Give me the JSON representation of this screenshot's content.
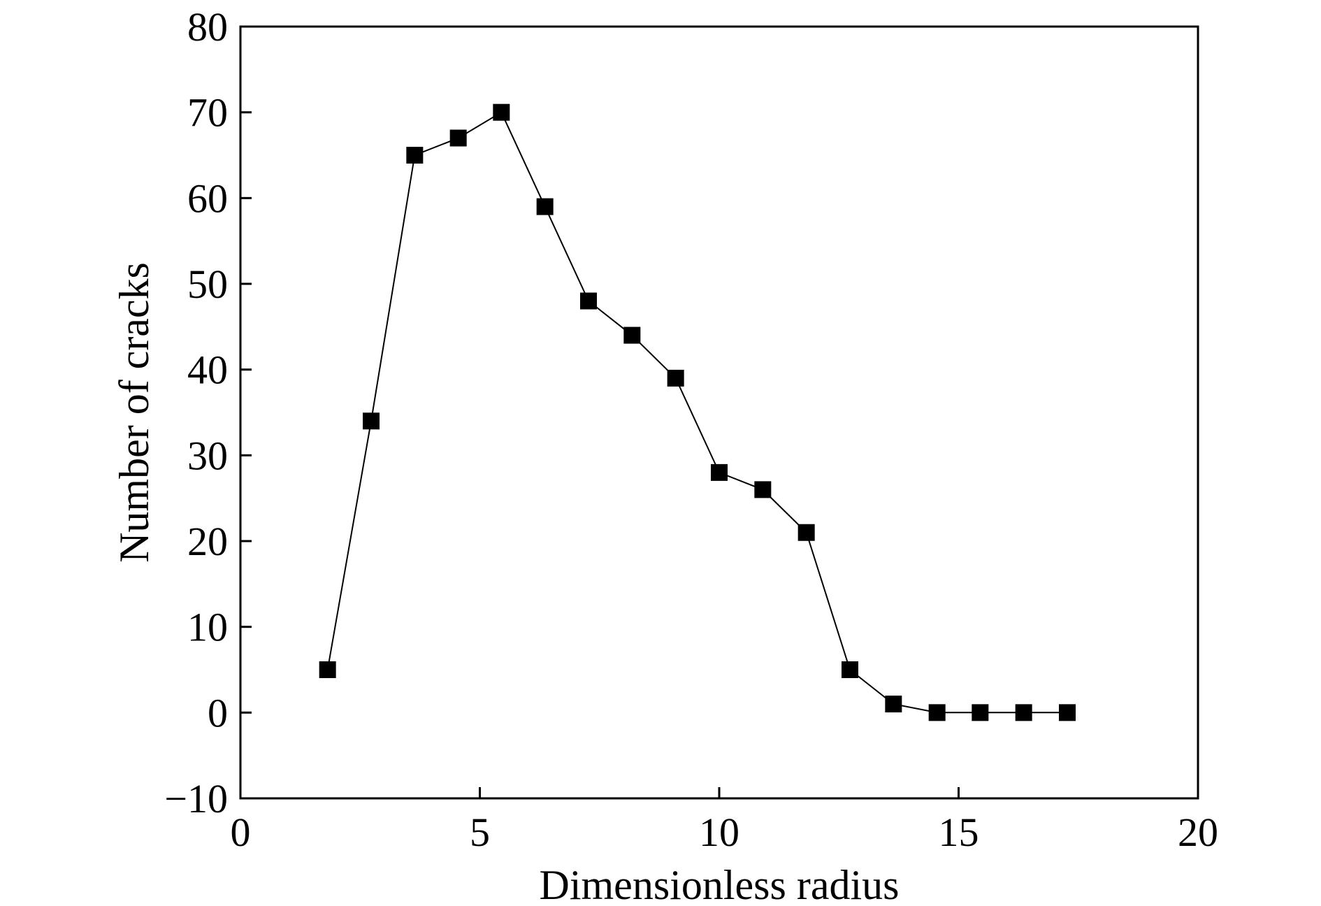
{
  "chart_data": {
    "type": "line",
    "title": "",
    "xlabel": "Dimensionless radius",
    "ylabel": "Number of cracks",
    "xlim": [
      0,
      20
    ],
    "ylim": [
      -10,
      80
    ],
    "xticks": [
      0,
      5,
      10,
      15,
      20
    ],
    "yticks": [
      -10,
      0,
      10,
      20,
      30,
      40,
      50,
      60,
      70,
      80
    ],
    "grid": false,
    "legend": "none",
    "marker": "square",
    "color": "#000000",
    "series": [
      {
        "x": [
          1.82,
          2.73,
          3.64,
          4.55,
          5.45,
          6.36,
          7.27,
          8.18,
          9.09,
          10.0,
          10.91,
          11.82,
          12.73,
          13.64,
          14.55,
          15.45,
          16.36,
          17.27
        ],
        "y": [
          5,
          34,
          65,
          67,
          70,
          59,
          48,
          44,
          39,
          28,
          26,
          21,
          5,
          1,
          0,
          0,
          0,
          0
        ]
      }
    ]
  }
}
